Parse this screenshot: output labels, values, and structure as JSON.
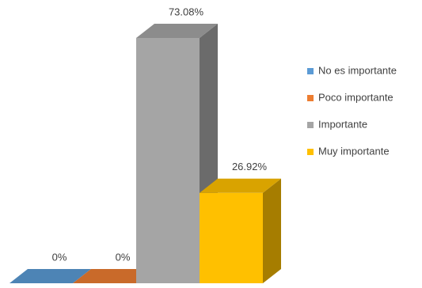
{
  "chart_data": {
    "type": "bar3d",
    "series": [
      {
        "name": "No es importante",
        "color": "#5b9bd5",
        "values": [
          0
        ],
        "value_labels": [
          "0%"
        ]
      },
      {
        "name": "Poco importante",
        "color": "#ed7d31",
        "values": [
          0
        ],
        "value_labels": [
          "0%"
        ]
      },
      {
        "name": "Importante",
        "color": "#a5a5a5",
        "values": [
          73.08
        ],
        "value_labels": [
          "73.08%"
        ]
      },
      {
        "name": "Muy importante",
        "color": "#ffc000",
        "values": [
          26.92
        ],
        "value_labels": [
          "26.92%"
        ]
      }
    ],
    "legend": "right"
  }
}
